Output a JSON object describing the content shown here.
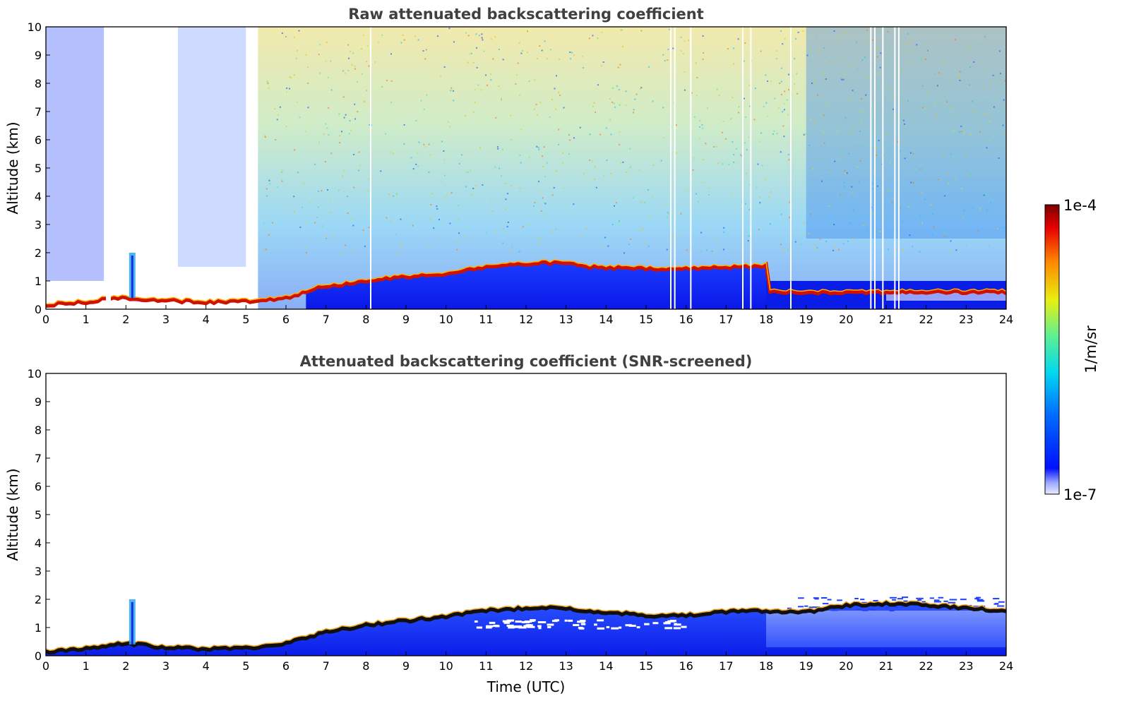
{
  "chart_data": [
    {
      "type": "heatmap",
      "title": "Raw attenuated backscattering coefficient",
      "ylabel": "Altitude (km)",
      "xlabel": "",
      "xlim": [
        0,
        24
      ],
      "ylim": [
        0,
        10
      ],
      "xticks": [
        "0",
        "1",
        "2",
        "3",
        "4",
        "5",
        "6",
        "7",
        "8",
        "9",
        "10",
        "11",
        "12",
        "13",
        "14",
        "15",
        "16",
        "17",
        "18",
        "19",
        "20",
        "21",
        "22",
        "23",
        "24"
      ],
      "yticks": [
        "0",
        "1",
        "2",
        "3",
        "4",
        "5",
        "6",
        "7",
        "8",
        "9",
        "10"
      ],
      "colorscale": "jet-log",
      "colorbar": {
        "min": "1e-7",
        "max": "1e-4",
        "label": "1/m/sr"
      },
      "layer_top_km": [
        [
          0,
          0.15
        ],
        [
          1,
          0.25
        ],
        [
          1.5,
          0.35
        ],
        [
          2,
          0.4
        ],
        [
          3,
          0.3
        ],
        [
          4,
          0.25
        ],
        [
          5,
          0.28
        ],
        [
          6,
          0.4
        ],
        [
          6.8,
          0.75
        ],
        [
          7.5,
          0.9
        ],
        [
          8,
          1.0
        ],
        [
          9,
          1.15
        ],
        [
          10,
          1.25
        ],
        [
          11,
          1.5
        ],
        [
          12,
          1.6
        ],
        [
          12.8,
          1.65
        ],
        [
          13.5,
          1.5
        ],
        [
          14.5,
          1.45
        ],
        [
          15.5,
          1.4
        ],
        [
          16.5,
          1.45
        ],
        [
          17.5,
          1.5
        ],
        [
          18,
          1.55
        ]
      ],
      "plume": {
        "time_utc": 2.15,
        "top_km": 2.0
      },
      "blank_times_utc": [
        1.5,
        8.1,
        15.6,
        15.7,
        16.1,
        17.4,
        17.6,
        18.6,
        20.6,
        20.7,
        20.9,
        21.2,
        21.3
      ]
    },
    {
      "type": "heatmap",
      "title": "Attenuated backscattering coefficient (SNR-screened)",
      "ylabel": "Altitude (km)",
      "xlabel": "Time (UTC)",
      "xlim": [
        0,
        24
      ],
      "ylim": [
        0,
        10
      ],
      "xticks": [
        "0",
        "1",
        "2",
        "3",
        "4",
        "5",
        "6",
        "7",
        "8",
        "9",
        "10",
        "11",
        "12",
        "13",
        "14",
        "15",
        "16",
        "17",
        "18",
        "19",
        "20",
        "21",
        "22",
        "23",
        "24"
      ],
      "yticks": [
        "0",
        "1",
        "2",
        "3",
        "4",
        "5",
        "6",
        "7",
        "8",
        "9",
        "10"
      ],
      "colorscale": "jet-log",
      "colorbar": {
        "min": "1e-7",
        "max": "1e-4",
        "label": "1/m/sr"
      },
      "layer_top_km": [
        [
          0,
          0.15
        ],
        [
          1,
          0.25
        ],
        [
          1.5,
          0.35
        ],
        [
          2,
          0.45
        ],
        [
          3,
          0.3
        ],
        [
          4,
          0.25
        ],
        [
          5,
          0.28
        ],
        [
          6,
          0.45
        ],
        [
          7,
          0.85
        ],
        [
          8,
          1.1
        ],
        [
          9,
          1.25
        ],
        [
          10,
          1.4
        ],
        [
          11,
          1.6
        ],
        [
          12,
          1.7
        ],
        [
          12.8,
          1.75
        ],
        [
          13.5,
          1.55
        ],
        [
          14.5,
          1.5
        ],
        [
          15.5,
          1.4
        ],
        [
          16.5,
          1.5
        ],
        [
          17.5,
          1.6
        ],
        [
          18,
          1.6
        ],
        [
          19,
          1.55
        ],
        [
          20,
          1.8
        ],
        [
          21,
          1.85
        ],
        [
          22,
          1.8
        ],
        [
          23,
          1.7
        ],
        [
          24,
          1.6
        ]
      ],
      "plume": {
        "time_utc": 2.15,
        "top_km": 2.0
      }
    }
  ]
}
